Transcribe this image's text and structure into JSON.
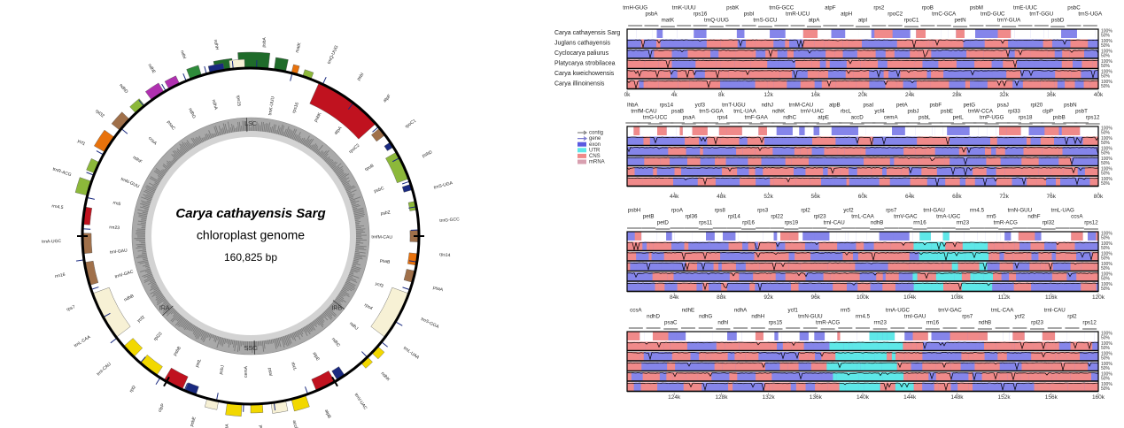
{
  "genome_map": {
    "title": "Carya cathayensis Sarg",
    "subtitle": "chloroplast genome",
    "length": "160,825 bp",
    "regions": [
      "LSC",
      "IRB",
      "SSC",
      "IRA"
    ],
    "gene_labels": [
      "psbA",
      "trnK-UUU",
      "matK",
      "rps16",
      "trnQ-UUG",
      "psbK",
      "psbI",
      "atpA",
      "atpF",
      "rpoC2",
      "rpoC1",
      "rpoB",
      "psbD",
      "psbC",
      "trnS-UGA",
      "psbZ",
      "trnG-GCC",
      "trnfM-CAU",
      "rps14",
      "psaB",
      "psaA",
      "ycf3",
      "trnS-GGA",
      "rps4",
      "trnL-UAA",
      "ndhJ",
      "ndhK",
      "ndhC",
      "trnV-UAC",
      "atpE",
      "atpB",
      "rbcL",
      "accD",
      "psaI",
      "ycf4",
      "cemA",
      "petA",
      "psbJ",
      "psbE",
      "petL",
      "clpP",
      "psbB",
      "rpl2",
      "rpl23",
      "trnI-CAU",
      "ycf2",
      "trnL-CAA",
      "ndhB",
      "rps7",
      "trnV-GAC",
      "rrn16",
      "trnI-GAU",
      "trnA-UGC",
      "rrn23",
      "rrn4.5",
      "rrn5",
      "trnR-ACG",
      "trnN-GUU",
      "ycf1",
      "ndhF",
      "rpl32",
      "ccsA",
      "ndhD",
      "psaC",
      "ndhE",
      "ndhG",
      "ndhI",
      "ndhA",
      "ndhH",
      "rps15"
    ]
  },
  "alignment": {
    "species": [
      "Carya cathayensis Sarg",
      "Juglans cathayensis",
      "Cyclocarya paliurus",
      "Platycarya strobilacea",
      "Carya kweichowensis",
      "Carya illinoinensis"
    ],
    "legend": [
      "contig",
      "gene",
      "exon",
      "UTR",
      "CNS",
      "mRNA"
    ],
    "percent_labels": [
      "100%",
      "50%"
    ],
    "rows": [
      {
        "genes": [
          "trnH-GUG",
          "psbA",
          "matK",
          "trnK-UUU",
          "rps16",
          "trnQ-UUG",
          "psbK",
          "psbI",
          "trnS-GCU",
          "trnG-GCC",
          "trnR-UCU",
          "atpA",
          "atpF",
          "atpH",
          "atpI",
          "rps2",
          "rpoC2",
          "rpoC1",
          "rpoB",
          "trnC-GCA",
          "petN",
          "psbM",
          "trnD-GUC",
          "trnY-GUA",
          "trnE-UUC",
          "trnT-GGU",
          "psbD",
          "psbC",
          "trnS-UGA"
        ],
        "ticks": [
          "0k",
          "4k",
          "8k",
          "12k",
          "16k",
          "20k",
          "24k",
          "28k",
          "32k",
          "36k",
          "40k"
        ]
      },
      {
        "genes": [
          "lhbA",
          "trnfM-CAU",
          "trnG-UCC",
          "rps14",
          "psaB",
          "psaA",
          "ycf3",
          "trnS-GGA",
          "rps4",
          "trnT-UGU",
          "trnL-UAA",
          "trnF-GAA",
          "ndhJ",
          "ndhK",
          "ndhC",
          "trnM-CAU",
          "trnV-UAC",
          "atpE",
          "atpB",
          "rbcL",
          "accD",
          "psaI",
          "ycf4",
          "cemA",
          "petA",
          "psbJ",
          "psbL",
          "psbF",
          "psbE",
          "petL",
          "petG",
          "trnW-CCA",
          "trnP-UGG",
          "psaJ",
          "rpl33",
          "rps18",
          "rpl20",
          "clpP",
          "psbB",
          "psbN",
          "psbT",
          "rps12"
        ],
        "ticks": [
          "44k",
          "48k",
          "52k",
          "56k",
          "60k",
          "64k",
          "68k",
          "72k",
          "76k",
          "80k"
        ]
      },
      {
        "genes": [
          "psbH",
          "petB",
          "petD",
          "rpoA",
          "rpl36",
          "rps11",
          "rps8",
          "rpl14",
          "rpl16",
          "rps3",
          "rpl22",
          "rps19",
          "rpl2",
          "rpl23",
          "trnI-CAU",
          "ycf2",
          "trnL-CAA",
          "ndhB",
          "rps7",
          "trnV-GAC",
          "rrn16",
          "trnI-GAU",
          "trnA-UGC",
          "rrn23",
          "rrn4.5",
          "rrn5",
          "trnR-ACG",
          "trnN-GUU",
          "ndhF",
          "rpl32",
          "trnL-UAG",
          "ccsA",
          "rps12"
        ],
        "ticks": [
          "84k",
          "88k",
          "92k",
          "96k",
          "100k",
          "104k",
          "108k",
          "112k",
          "116k",
          "120k"
        ]
      },
      {
        "genes": [
          "ccsA",
          "ndhD",
          "psaC",
          "ndhE",
          "ndhG",
          "ndhI",
          "ndhA",
          "ndhH",
          "rps15",
          "ycf1",
          "trnN-GUU",
          "trnR-ACG",
          "rrn5",
          "rrn4.5",
          "rrn23",
          "trnA-UGC",
          "trnI-GAU",
          "rrn16",
          "trnV-GAC",
          "rps7",
          "ndhB",
          "trnL-CAA",
          "ycf2",
          "rpl23",
          "trnI-CAU",
          "rpl2",
          "rps12"
        ],
        "ticks": [
          "124k",
          "128k",
          "132k",
          "136k",
          "140k",
          "144k",
          "148k",
          "152k",
          "156k",
          "160k"
        ]
      }
    ]
  }
}
